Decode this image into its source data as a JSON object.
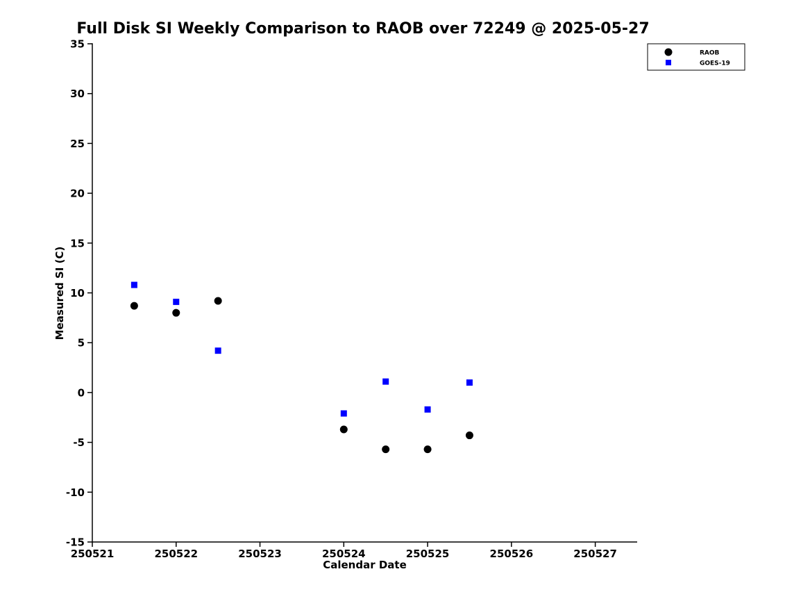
{
  "chart_data": {
    "type": "scatter",
    "title": "Full Disk SI Weekly Comparison to RAOB over 72249 @ 2025-05-27",
    "xlabel": "Calendar Date",
    "ylabel": "Measured SI (C)",
    "xlim": [
      250521,
      250527.5
    ],
    "ylim": [
      -15,
      35
    ],
    "xticks": [
      250521,
      250522,
      250523,
      250524,
      250525,
      250526,
      250527
    ],
    "yticks": [
      35,
      30,
      25,
      20,
      15,
      10,
      5,
      0,
      -5,
      -10,
      -15
    ],
    "grid": false,
    "legend_position": "top-right",
    "series": [
      {
        "name": "RAOB",
        "marker": "circle",
        "color": "#000000",
        "points": [
          [
            250521.5,
            8.7
          ],
          [
            250522.0,
            8.0
          ],
          [
            250522.5,
            9.2
          ],
          [
            250524.0,
            -3.7
          ],
          [
            250524.5,
            -5.7
          ],
          [
            250525.0,
            -5.7
          ],
          [
            250525.5,
            -4.3
          ]
        ]
      },
      {
        "name": "GOES-19",
        "marker": "square",
        "color": "#0000ff",
        "points": [
          [
            250521.5,
            10.8
          ],
          [
            250522.0,
            9.1
          ],
          [
            250522.5,
            4.2
          ],
          [
            250524.0,
            -2.1
          ],
          [
            250524.5,
            1.1
          ],
          [
            250525.0,
            -1.7
          ],
          [
            250525.5,
            1.0
          ]
        ]
      }
    ]
  }
}
